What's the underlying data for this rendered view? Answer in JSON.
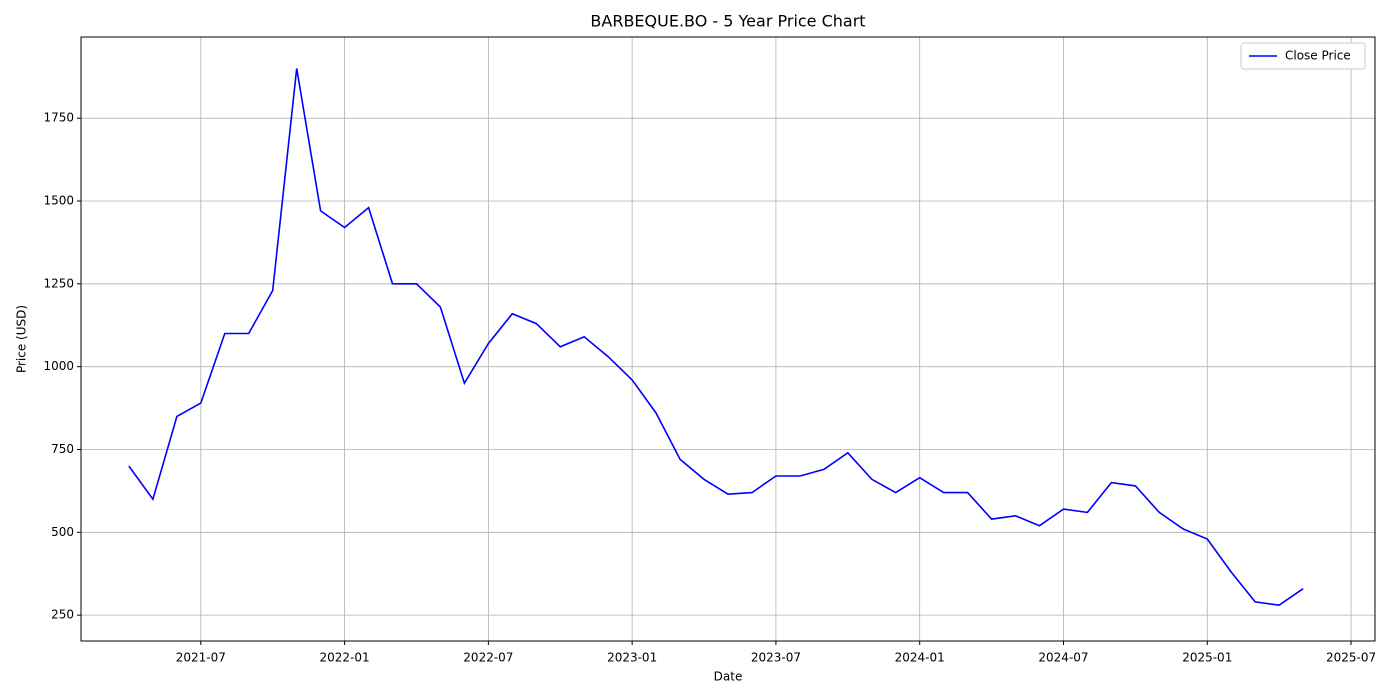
{
  "chart_data": {
    "type": "line",
    "title": "BARBEQUE.BO - 5 Year Price Chart",
    "x_label": "Date",
    "y_label": "Price (USD)",
    "x": [
      "2021-04",
      "2021-05",
      "2021-06",
      "2021-07",
      "2021-08",
      "2021-09",
      "2021-10",
      "2021-11",
      "2021-12",
      "2022-01",
      "2022-02",
      "2022-03",
      "2022-04",
      "2022-05",
      "2022-06",
      "2022-07",
      "2022-08",
      "2022-09",
      "2022-10",
      "2022-11",
      "2022-12",
      "2023-01",
      "2023-02",
      "2023-03",
      "2023-04",
      "2023-05",
      "2023-06",
      "2023-07",
      "2023-08",
      "2023-09",
      "2023-10",
      "2023-11",
      "2023-12",
      "2024-01",
      "2024-02",
      "2024-03",
      "2024-04",
      "2024-05",
      "2024-06",
      "2024-07",
      "2024-08",
      "2024-09",
      "2024-10",
      "2024-11",
      "2024-12",
      "2025-01",
      "2025-02",
      "2025-03",
      "2025-04",
      "2025-05"
    ],
    "series": [
      {
        "name": "Close Price",
        "color": "#0000ff",
        "values": [
          700,
          600,
          850,
          890,
          1100,
          1100,
          1230,
          1900,
          1470,
          1420,
          1480,
          1250,
          1250,
          1180,
          950,
          1070,
          1160,
          1130,
          1060,
          1090,
          1030,
          960,
          860,
          720,
          660,
          615,
          620,
          670,
          670,
          690,
          740,
          660,
          620,
          665,
          620,
          620,
          540,
          550,
          520,
          570,
          560,
          650,
          640,
          560,
          510,
          480,
          380,
          290,
          280,
          330
        ]
      }
    ],
    "xlim": [
      "2021-02",
      "2025-08"
    ],
    "xticks": [
      "2021-07",
      "2022-01",
      "2022-07",
      "2023-01",
      "2023-07",
      "2024-01",
      "2024-07",
      "2025-01",
      "2025-07"
    ],
    "ylim": [
      172,
      1995
    ],
    "yticks": [
      250,
      500,
      750,
      1000,
      1250,
      1500,
      1750
    ],
    "grid": true,
    "legend": "upper-right"
  }
}
